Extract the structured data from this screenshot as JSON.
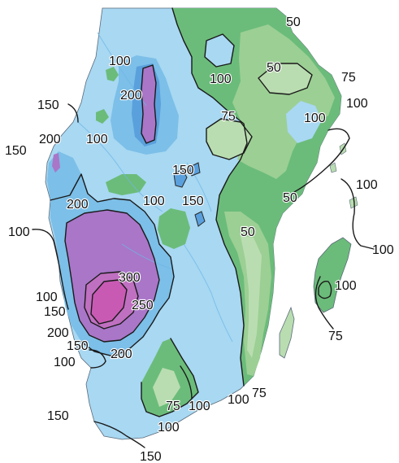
{
  "colors": {
    "sea": "#ffffff",
    "band_25_50": "#b9ddb0",
    "band_50_75": "#9ccf94",
    "band_75_100": "#6bbc7a",
    "band_100_150": "#a8d8f2",
    "band_150_200": "#7cbfe8",
    "band_200_250": "#5aa0dc",
    "band_250_300": "#a976c8",
    "band_300_plus": "#c85ab4"
  },
  "labels": [
    {
      "id": "l50-top",
      "text": "50"
    },
    {
      "id": "l100-n1",
      "text": "100"
    },
    {
      "id": "l200-n",
      "text": "200"
    },
    {
      "id": "l100-n2",
      "text": "100"
    },
    {
      "id": "l150-w1",
      "text": "150"
    },
    {
      "id": "l100-c1",
      "text": "100"
    },
    {
      "id": "l50-ne",
      "text": "50"
    },
    {
      "id": "l75-ne",
      "text": "75"
    },
    {
      "id": "l100-ne",
      "text": "100"
    },
    {
      "id": "l75-c",
      "text": "75"
    },
    {
      "id": "l100-e",
      "text": "100"
    },
    {
      "id": "l200-w",
      "text": "200"
    },
    {
      "id": "l150-w2",
      "text": "150"
    },
    {
      "id": "l150-c",
      "text": "150"
    },
    {
      "id": "l100-c2",
      "text": "100"
    },
    {
      "id": "l150-c2",
      "text": "150"
    },
    {
      "id": "l50-e",
      "text": "50"
    },
    {
      "id": "l200-w2",
      "text": "200"
    },
    {
      "id": "l100-i1",
      "text": "100"
    },
    {
      "id": "l100-w",
      "text": "100"
    },
    {
      "id": "l50-c",
      "text": "50"
    },
    {
      "id": "l100-i2",
      "text": "100"
    },
    {
      "id": "l300",
      "text": "300"
    },
    {
      "id": "l250",
      "text": "250"
    },
    {
      "id": "l100-sw1",
      "text": "100"
    },
    {
      "id": "l150-sw1",
      "text": "150"
    },
    {
      "id": "l100-gl",
      "text": "100"
    },
    {
      "id": "l200-sw",
      "text": "200"
    },
    {
      "id": "l150-sw2",
      "text": "150"
    },
    {
      "id": "l200-s",
      "text": "200"
    },
    {
      "id": "l100-sw2",
      "text": "100"
    },
    {
      "id": "l75-gl",
      "text": "75"
    },
    {
      "id": "l100-s1",
      "text": "100"
    },
    {
      "id": "l75-s1",
      "text": "75"
    },
    {
      "id": "l100-s2",
      "text": "100"
    },
    {
      "id": "l75-s2",
      "text": "75"
    },
    {
      "id": "l150-s",
      "text": "150"
    },
    {
      "id": "l100-s3",
      "text": "100"
    },
    {
      "id": "l150-bottom",
      "text": "150"
    }
  ]
}
